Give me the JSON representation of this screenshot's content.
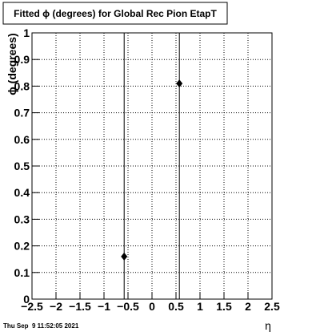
{
  "chart_data": {
    "type": "scatter",
    "title": "Fitted ϕ (degrees) for Global Rec Pion EtapT",
    "x_label": "η",
    "y_label": "ϕ (degrees)",
    "timestamp": "Thu Sep  9 11:52:05 2021",
    "x": [
      -0.58,
      0.57
    ],
    "values": [
      0.16,
      0.81
    ],
    "errors": [
      1,
      1
    ],
    "color": "#000000",
    "grid": true,
    "xlim": [
      -2.5,
      2.5
    ],
    "xticks": [
      {
        "value": -2.5,
        "label": "−2.5"
      },
      {
        "value": -2,
        "label": "−2"
      },
      {
        "value": -1.5,
        "label": "−1.5"
      },
      {
        "value": -1,
        "label": "−1"
      },
      {
        "value": -0.5,
        "label": "−0.5"
      },
      0,
      0.5,
      1,
      1.5,
      2,
      2.5
    ],
    "ylim": [
      0,
      1
    ],
    "yticks": [
      0,
      0.1,
      0.2,
      0.3,
      0.4,
      0.5,
      0.6,
      0.7,
      0.8,
      0.9,
      1
    ]
  }
}
